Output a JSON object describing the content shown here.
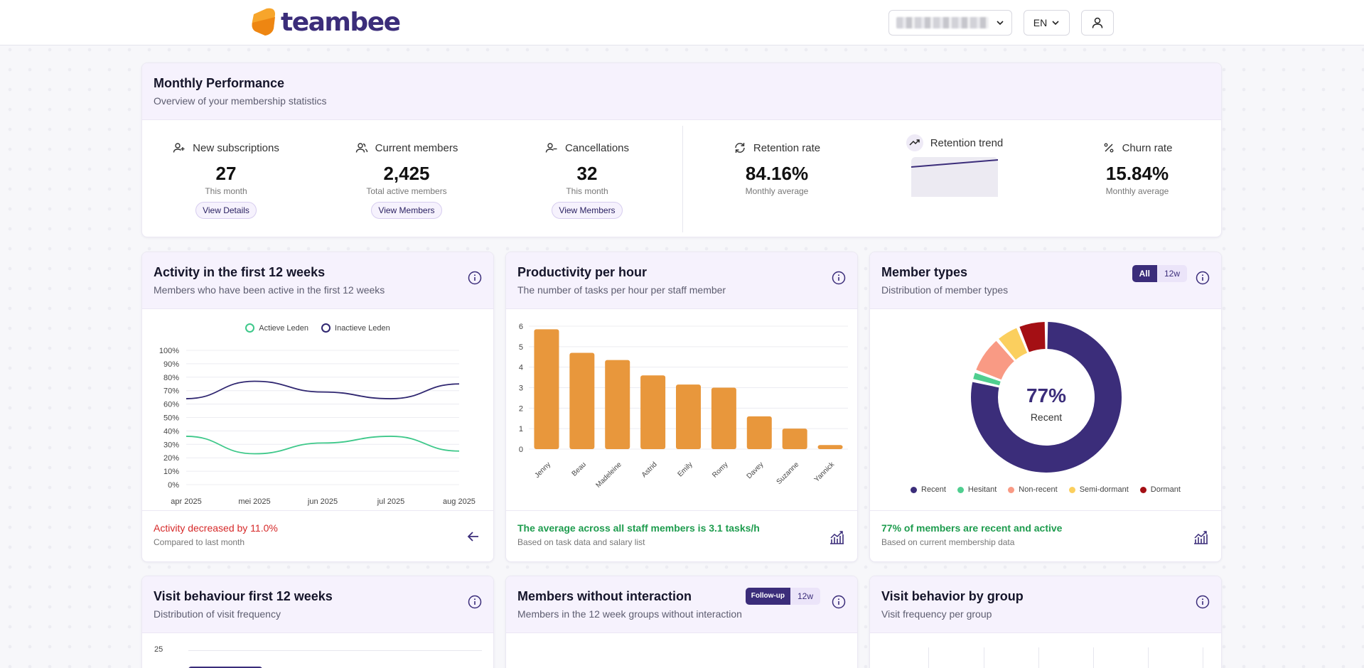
{
  "header": {
    "logo_text": "teambee",
    "language": "EN"
  },
  "performance": {
    "title": "Monthly Performance",
    "subtitle": "Overview of your membership statistics",
    "kpis": [
      {
        "label": "New subscriptions",
        "value": "27",
        "caption": "This month",
        "button": "View Details",
        "icon": "user-plus-icon"
      },
      {
        "label": "Current members",
        "value": "2,425",
        "caption": "Total active members",
        "button": "View Members",
        "icon": "users-icon"
      },
      {
        "label": "Cancellations",
        "value": "32",
        "caption": "This month",
        "button": "View Members",
        "icon": "user-minus-icon"
      },
      {
        "label": "Retention rate",
        "value": "84.16%",
        "caption": "Monthly average",
        "icon": "refresh-icon"
      },
      {
        "label": "Retention trend",
        "icon": "trending-up-icon"
      },
      {
        "label": "Churn rate",
        "value": "15.84%",
        "caption": "Monthly average",
        "icon": "percent-icon"
      }
    ]
  },
  "activity": {
    "title": "Activity in the first 12 weeks",
    "subtitle": "Members who have been active in the first 12 weeks",
    "footer_main": "Activity decreased by 11.0%",
    "footer_sub": "Compared to last month",
    "colors": {
      "active": "#3ec88a",
      "inactive": "#2f2670",
      "alert": "#d62828"
    }
  },
  "productivity": {
    "title": "Productivity per hour",
    "subtitle": "The number of tasks per hour per staff member",
    "footer_main": "The average across all staff members is 3.1 tasks/h",
    "footer_sub": "Based on task data and salary list",
    "colors": {
      "bar": "#e8973c",
      "positive": "#1e9c4e"
    }
  },
  "member_types": {
    "title": "Member types",
    "subtitle": "Distribution of member types",
    "toggle": [
      "All",
      "12w"
    ],
    "center_value": "77%",
    "center_label": "Recent",
    "footer_main": "77% of members are recent and active",
    "footer_sub": "Based on current membership data"
  },
  "visit_behaviour": {
    "title": "Visit behaviour first 12 weeks",
    "subtitle": "Distribution of visit frequency",
    "first_tick": "25"
  },
  "no_interaction": {
    "title": "Members without interaction",
    "subtitle": "Members in the 12 week groups without interaction",
    "toggle": [
      "Follow-up",
      "12w"
    ]
  },
  "visit_group": {
    "title": "Visit behavior by group",
    "subtitle": "Visit frequency per group"
  },
  "chart_data": [
    {
      "type": "line",
      "x": [
        "apr 2025",
        "mei 2025",
        "jun 2025",
        "jul 2025",
        "aug 2025"
      ],
      "series": [
        {
          "name": "Actieve Leden",
          "values": [
            36,
            23,
            31,
            36,
            25
          ],
          "color": "#3ec88a"
        },
        {
          "name": "Inactieve Leden",
          "values": [
            64,
            77,
            69,
            64,
            75
          ],
          "color": "#2f2670"
        }
      ],
      "yticks": [
        "0%",
        "10%",
        "20%",
        "30%",
        "40%",
        "50%",
        "60%",
        "70%",
        "80%",
        "90%",
        "100%"
      ],
      "ylim": [
        0,
        100
      ],
      "legend": "top"
    },
    {
      "type": "bar",
      "categories": [
        "Jenny",
        "Beau",
        "Madeleine",
        "Astrid",
        "Emily",
        "Romy",
        "Davey",
        "Suzanne",
        "Yannick"
      ],
      "values": [
        5.85,
        4.7,
        4.35,
        3.6,
        3.15,
        3.0,
        1.6,
        1.0,
        0.2
      ],
      "yticks": [
        "0",
        "1",
        "2",
        "3",
        "4",
        "5",
        "6"
      ],
      "ylim": [
        0,
        6
      ]
    },
    {
      "type": "pie",
      "categories": [
        "Recent",
        "Hesitant",
        "Non-recent",
        "Semi-dormant",
        "Dormant"
      ],
      "values": [
        77,
        2,
        8,
        5,
        6
      ],
      "colors": [
        "#3b2d7a",
        "#4fce8f",
        "#f99a84",
        "#fbcf5e",
        "#a40f14"
      ],
      "legend": "bottom"
    }
  ]
}
